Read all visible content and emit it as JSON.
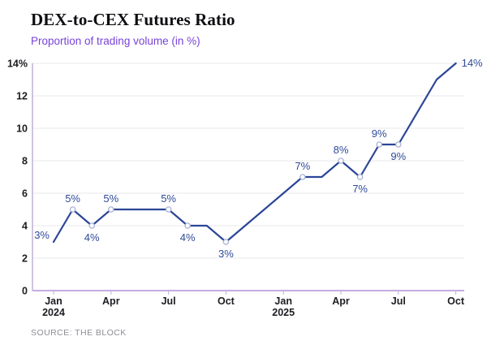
{
  "chart_data": {
    "type": "line",
    "title": "DEX-to-CEX Futures Ratio",
    "subtitle": "Proportion of trading volume (in %)",
    "source_label": "SOURCE: THE BLOCK",
    "ylim": [
      0,
      14
    ],
    "grid": true,
    "legend": "none",
    "x_unit": "month",
    "points": [
      {
        "month": "Jan 2024",
        "value": 3,
        "label": "3%",
        "label_pos": "left",
        "marker": false
      },
      {
        "month": "Feb 2024",
        "value": 5,
        "label": "5%",
        "label_pos": "above",
        "marker": true
      },
      {
        "month": "Mar 2024",
        "value": 4,
        "label": "4%",
        "label_pos": "below",
        "marker": true
      },
      {
        "month": "Apr 2024",
        "value": 5,
        "label": "5%",
        "label_pos": "above",
        "marker": true
      },
      {
        "month": "May 2024",
        "value": 5,
        "label": null,
        "label_pos": null,
        "marker": false
      },
      {
        "month": "Jun 2024",
        "value": 5,
        "label": null,
        "label_pos": null,
        "marker": false
      },
      {
        "month": "Jul 2024",
        "value": 5,
        "label": "5%",
        "label_pos": "above",
        "marker": true
      },
      {
        "month": "Aug 2024",
        "value": 4,
        "label": "4%",
        "label_pos": "below",
        "marker": true
      },
      {
        "month": "Sep 2024",
        "value": 4,
        "label": null,
        "label_pos": null,
        "marker": false
      },
      {
        "month": "Oct 2024",
        "value": 3,
        "label": "3%",
        "label_pos": "below",
        "marker": true
      },
      {
        "month": "Nov 2024",
        "value": 4,
        "label": null,
        "label_pos": null,
        "marker": false
      },
      {
        "month": "Dec 2024",
        "value": 5,
        "label": null,
        "label_pos": null,
        "marker": false
      },
      {
        "month": "Jan 2025",
        "value": 6,
        "label": null,
        "label_pos": null,
        "marker": false
      },
      {
        "month": "Feb 2025",
        "value": 7,
        "label": "7%",
        "label_pos": "above",
        "marker": true
      },
      {
        "month": "Mar 2025",
        "value": 7,
        "label": null,
        "label_pos": null,
        "marker": false
      },
      {
        "month": "Apr 2025",
        "value": 8,
        "label": "8%",
        "label_pos": "above",
        "marker": true
      },
      {
        "month": "May 2025",
        "value": 7,
        "label": "7%",
        "label_pos": "below",
        "marker": true
      },
      {
        "month": "Jun 2025",
        "value": 9,
        "label": "9%",
        "label_pos": "above",
        "marker": true
      },
      {
        "month": "Jul 2025",
        "value": 9,
        "label": "9%",
        "label_pos": "below",
        "marker": true
      },
      {
        "month": "Aug 2025",
        "value": 11,
        "label": null,
        "label_pos": null,
        "marker": false
      },
      {
        "month": "Sep 2025",
        "value": 13,
        "label": null,
        "label_pos": null,
        "marker": false
      },
      {
        "month": "Oct 2025",
        "value": 14,
        "label": "14%",
        "label_pos": "right",
        "marker": false
      }
    ],
    "y_axis": {
      "ticks": [
        {
          "value": 14,
          "label": "14%"
        },
        {
          "value": 12,
          "label": "12"
        },
        {
          "value": 10,
          "label": "10"
        },
        {
          "value": 8,
          "label": "8"
        },
        {
          "value": 6,
          "label": "6"
        },
        {
          "value": 4,
          "label": "4"
        },
        {
          "value": 2,
          "label": "2"
        },
        {
          "value": 0,
          "label": "0"
        }
      ]
    },
    "x_axis": {
      "ticks": [
        {
          "label": "Jan",
          "year": "2024",
          "month_index": 0
        },
        {
          "label": "Apr",
          "year": null,
          "month_index": 3
        },
        {
          "label": "Jul",
          "year": null,
          "month_index": 6
        },
        {
          "label": "Oct",
          "year": null,
          "month_index": 9
        },
        {
          "label": "Jan",
          "year": "2025",
          "month_index": 12
        },
        {
          "label": "Apr",
          "year": null,
          "month_index": 15
        },
        {
          "label": "Jul",
          "year": null,
          "month_index": 18
        },
        {
          "label": "Oct",
          "year": null,
          "month_index": 21
        }
      ]
    },
    "colors": {
      "line": "#2c4696",
      "point_label": "#2f4a99",
      "marker_fill": "#ffffff",
      "marker_stroke": "#a6b1d6",
      "subtitle_purple": "#7743d9",
      "bottom_axis_purple": "#c2aee2",
      "left_axis_purple": "#b4a4cf",
      "gridline": "#e9e9ed",
      "title_text": "#0e0e12",
      "tick_text": "#1c1c22",
      "source_text": "#8d8d96"
    }
  }
}
